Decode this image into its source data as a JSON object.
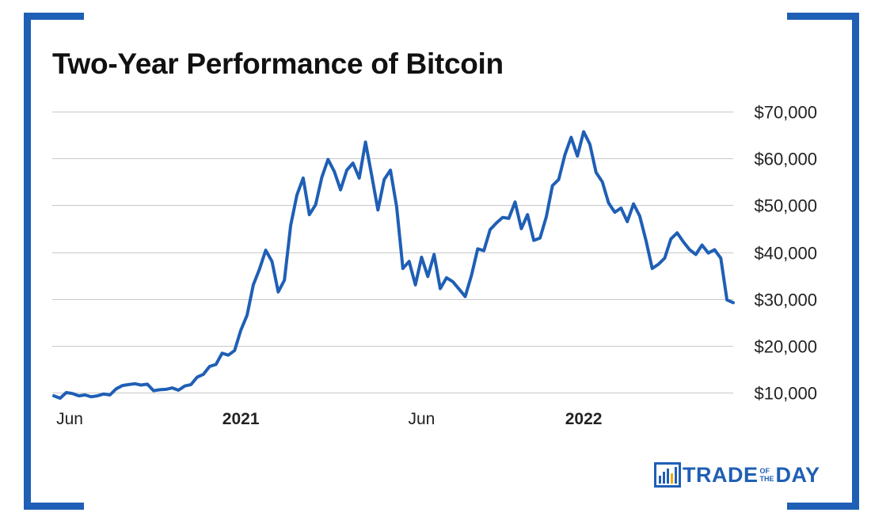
{
  "colors": {
    "frame": "#1f5fb5",
    "line": "#1f5fb5",
    "grid": "#c9c9c9",
    "text": "#111111"
  },
  "chart_data": {
    "type": "line",
    "title": "Two-Year Performance of Bitcoin",
    "xlabel": "",
    "ylabel": "",
    "ylim": [
      10000,
      70000
    ],
    "x_tick_labels": [
      {
        "label": "Jun",
        "x": 0,
        "bold": false
      },
      {
        "label": "2021",
        "x": 30,
        "bold": true
      },
      {
        "label": "Jun",
        "x": 59,
        "bold": false
      },
      {
        "label": "2022",
        "x": 85,
        "bold": true
      }
    ],
    "y_tick_labels": [
      "$10,000",
      "$20,000",
      "$30,000",
      "$40,000",
      "$50,000",
      "$60,000",
      "$70,000"
    ],
    "y_ticks": [
      10000,
      20000,
      30000,
      40000,
      50000,
      60000,
      70000
    ],
    "grid": true,
    "x_range": [
      0,
      109
    ],
    "series": [
      {
        "name": "Bitcoin",
        "x_unit": "weeks from start",
        "points": [
          [
            0,
            9300
          ],
          [
            1,
            8800
          ],
          [
            2,
            10000
          ],
          [
            3,
            9800
          ],
          [
            4,
            9300
          ],
          [
            5,
            9500
          ],
          [
            6,
            9100
          ],
          [
            7,
            9300
          ],
          [
            8,
            9700
          ],
          [
            9,
            9500
          ],
          [
            10,
            10800
          ],
          [
            11,
            11500
          ],
          [
            12,
            11700
          ],
          [
            13,
            11900
          ],
          [
            14,
            11600
          ],
          [
            15,
            11800
          ],
          [
            16,
            10400
          ],
          [
            17,
            10600
          ],
          [
            18,
            10700
          ],
          [
            19,
            11000
          ],
          [
            20,
            10500
          ],
          [
            21,
            11400
          ],
          [
            22,
            11700
          ],
          [
            23,
            13300
          ],
          [
            24,
            13900
          ],
          [
            25,
            15600
          ],
          [
            26,
            16000
          ],
          [
            27,
            18400
          ],
          [
            28,
            18000
          ],
          [
            29,
            19000
          ],
          [
            30,
            23300
          ],
          [
            31,
            26500
          ],
          [
            32,
            33000
          ],
          [
            33,
            36400
          ],
          [
            34,
            40400
          ],
          [
            35,
            38000
          ],
          [
            36,
            31500
          ],
          [
            37,
            34000
          ],
          [
            38,
            45700
          ],
          [
            39,
            52200
          ],
          [
            40,
            55800
          ],
          [
            41,
            48000
          ],
          [
            42,
            50100
          ],
          [
            43,
            56000
          ],
          [
            44,
            59800
          ],
          [
            45,
            57200
          ],
          [
            46,
            53300
          ],
          [
            47,
            57500
          ],
          [
            48,
            59000
          ],
          [
            49,
            55800
          ],
          [
            50,
            63500
          ],
          [
            51,
            56400
          ],
          [
            52,
            49000
          ],
          [
            53,
            55500
          ],
          [
            54,
            57500
          ],
          [
            55,
            49700
          ],
          [
            56,
            36500
          ],
          [
            57,
            38000
          ],
          [
            58,
            33000
          ],
          [
            59,
            38900
          ],
          [
            60,
            34800
          ],
          [
            61,
            39500
          ],
          [
            62,
            32200
          ],
          [
            63,
            34500
          ],
          [
            64,
            33700
          ],
          [
            65,
            32100
          ],
          [
            66,
            30500
          ],
          [
            67,
            35000
          ],
          [
            68,
            40700
          ],
          [
            69,
            40300
          ],
          [
            70,
            44800
          ],
          [
            71,
            46200
          ],
          [
            72,
            47400
          ],
          [
            73,
            47200
          ],
          [
            74,
            50700
          ],
          [
            75,
            45000
          ],
          [
            76,
            48000
          ],
          [
            77,
            42500
          ],
          [
            78,
            43000
          ],
          [
            79,
            47500
          ],
          [
            80,
            54200
          ],
          [
            81,
            55500
          ],
          [
            82,
            60800
          ],
          [
            83,
            64500
          ],
          [
            84,
            60500
          ],
          [
            85,
            65700
          ],
          [
            86,
            63000
          ],
          [
            87,
            57000
          ],
          [
            88,
            55000
          ],
          [
            89,
            50500
          ],
          [
            90,
            48500
          ],
          [
            91,
            49400
          ],
          [
            92,
            46500
          ],
          [
            93,
            50300
          ],
          [
            94,
            47700
          ],
          [
            95,
            42500
          ],
          [
            96,
            36500
          ],
          [
            97,
            37400
          ],
          [
            98,
            38700
          ],
          [
            99,
            42800
          ],
          [
            100,
            44100
          ],
          [
            101,
            42200
          ],
          [
            102,
            40500
          ],
          [
            103,
            39500
          ],
          [
            104,
            41500
          ],
          [
            105,
            39800
          ],
          [
            106,
            40500
          ],
          [
            107,
            38700
          ],
          [
            108,
            29800
          ],
          [
            109,
            29200
          ]
        ]
      }
    ]
  },
  "logo": {
    "left": "TRADE",
    "mid_top": "OF",
    "mid_bottom": "THE",
    "right": "DAY"
  }
}
